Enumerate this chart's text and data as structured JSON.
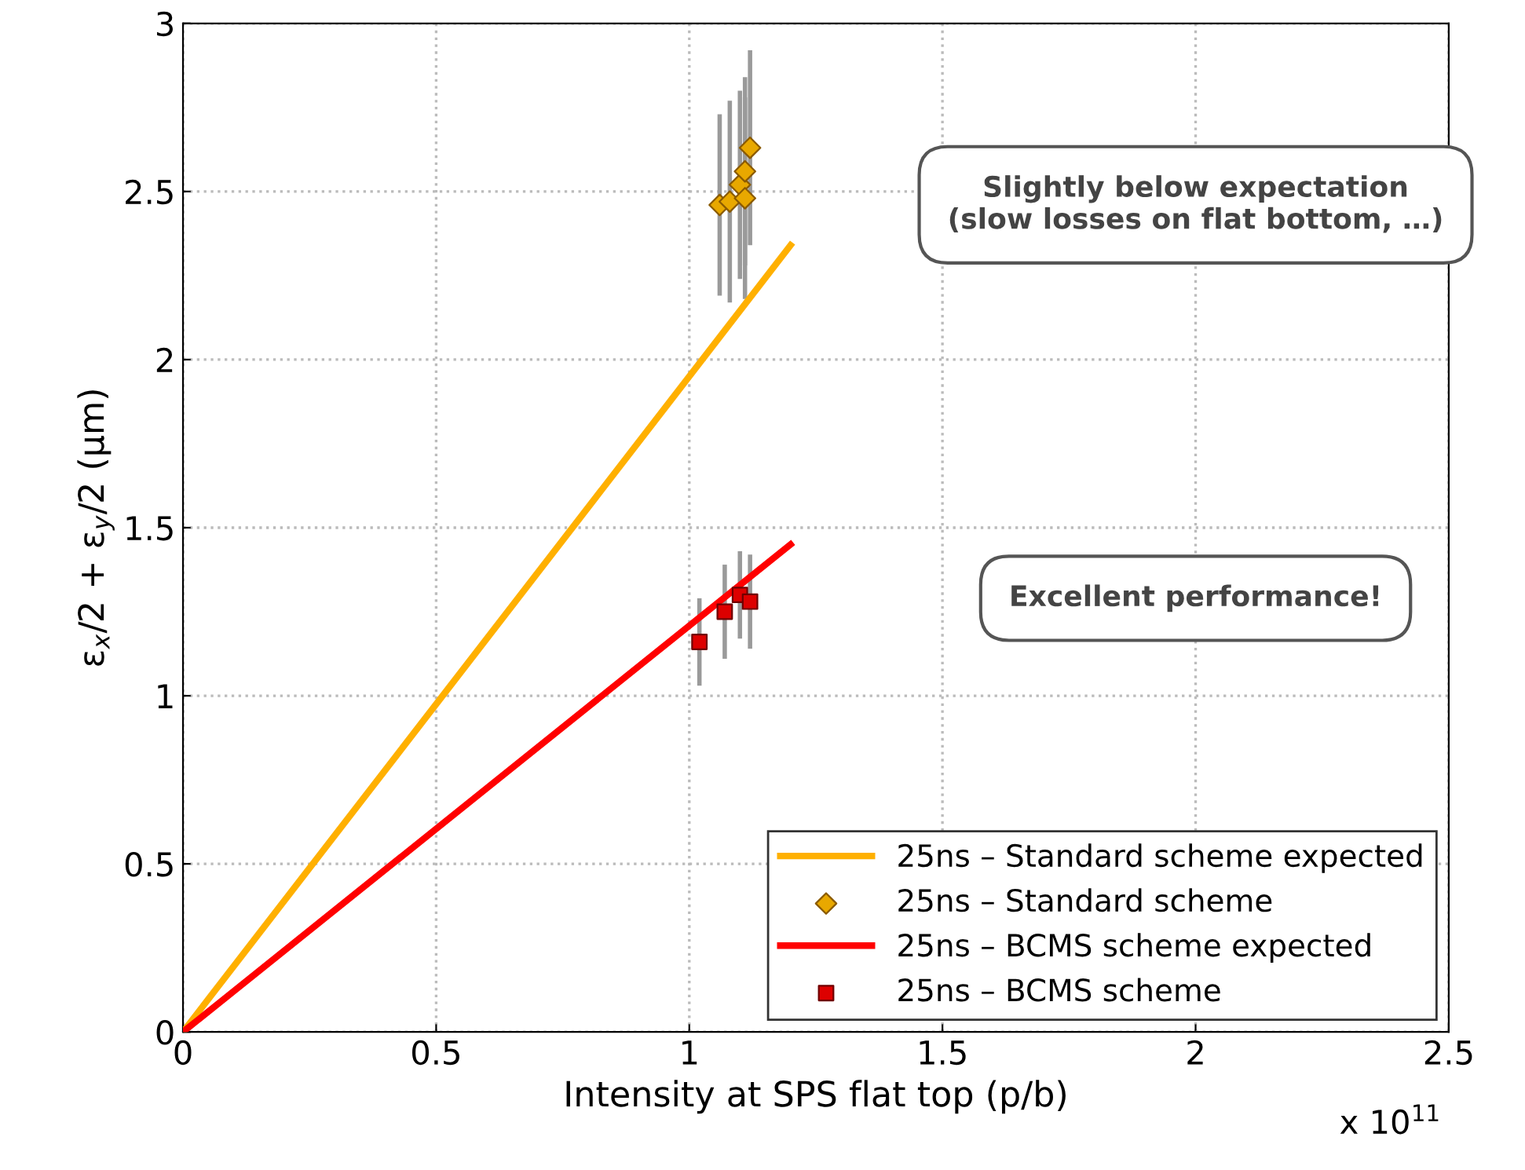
{
  "chart_data": {
    "type": "line",
    "xlabel": "Intensity at SPS flat top (p/b)",
    "ylabel": "ε$_{x}$/2 + ε$_{y}$/2 (μm)",
    "xlim": [
      0,
      2.5
    ],
    "ylim": [
      0,
      3
    ],
    "xticks": [
      0,
      0.5,
      1,
      1.5,
      2,
      2.5
    ],
    "yticks": [
      0,
      0.5,
      1,
      1.5,
      2,
      2.5,
      3
    ],
    "grid": true,
    "legend": "bottom right",
    "series": [
      {
        "name": "25ns – Standard scheme expected",
        "color": "#ffb000",
        "x": [
          0,
          1.2
        ],
        "values": [
          0,
          2.34
        ],
        "marker": "none"
      },
      {
        "name": "25ns – Standard scheme",
        "type": "scatter",
        "color": "#e8a800",
        "marker": "diamond",
        "x": [
          1.06,
          1.08,
          1.1,
          1.11,
          1.12,
          1.11
        ],
        "values": [
          2.46,
          2.47,
          2.52,
          2.56,
          2.63,
          2.48
        ],
        "errors": [
          0.27,
          0.3,
          0.28,
          0.28,
          0.29,
          0.3
        ]
      },
      {
        "name": "25ns – BCMS scheme expected",
        "color": "#ff0000",
        "x": [
          0,
          1.2
        ],
        "values": [
          0,
          1.45
        ],
        "marker": "none"
      },
      {
        "name": "25ns – BCMS scheme",
        "type": "scatter",
        "color": "#dd0000",
        "marker": "square",
        "x": [
          1.02,
          1.07,
          1.1,
          1.12
        ],
        "values": [
          1.16,
          1.25,
          1.3,
          1.28
        ],
        "errors": [
          0.13,
          0.14,
          0.13,
          0.14
        ]
      }
    ],
    "annotations": [
      "Slightly below expectation\n(slow losses on flat bottom, …)",
      "Excellent performance!",
      "x 10$^{11}$"
    ]
  }
}
